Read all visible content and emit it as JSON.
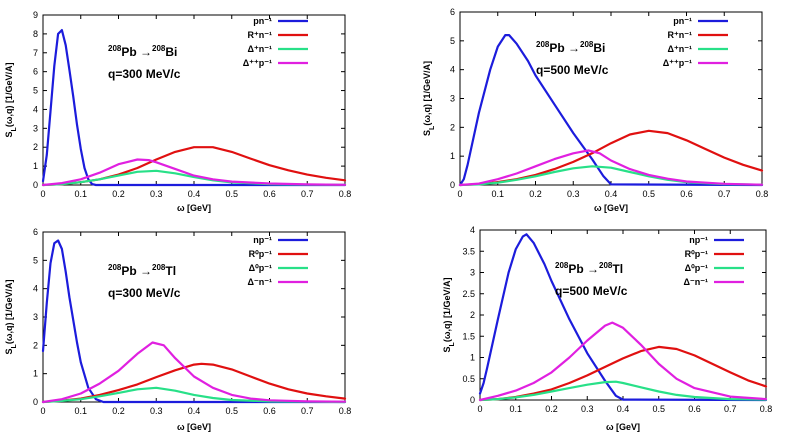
{
  "chart_data": [
    {
      "type": "line",
      "panel": "top-left",
      "reaction": {
        "target_mass": "208",
        "target": "Pb",
        "arrow": "→",
        "product_mass": "208",
        "product": "Bi"
      },
      "q_label": "q=300 MeV/c",
      "xlabel": "ω [GeV]",
      "ylabel": "S_L(ω,q) [1/GeV/A]",
      "xlim": [
        0,
        0.8
      ],
      "ylim": [
        0,
        9
      ],
      "xticks": [
        0,
        0.1,
        0.2,
        0.3,
        0.4,
        0.5,
        0.6,
        0.7,
        0.8
      ],
      "yticks": [
        0,
        1,
        2,
        3,
        4,
        5,
        6,
        7,
        8,
        9
      ],
      "legend_position": "top-right",
      "series": [
        {
          "name": "pn⁻¹",
          "color": "#1c1cdc",
          "x": [
            0,
            0.01,
            0.02,
            0.03,
            0.04,
            0.05,
            0.06,
            0.07,
            0.08,
            0.09,
            0.1,
            0.11,
            0.12,
            0.13,
            0.14,
            0.8
          ],
          "y": [
            0.2,
            1.6,
            3.9,
            6.3,
            8.0,
            8.2,
            7.4,
            6.1,
            4.7,
            3.2,
            1.9,
            0.9,
            0.3,
            0.05,
            0,
            0
          ]
        },
        {
          "name": "R⁺n⁻¹",
          "color": "#e01010",
          "x": [
            0,
            0.05,
            0.1,
            0.15,
            0.2,
            0.25,
            0.3,
            0.35,
            0.4,
            0.45,
            0.5,
            0.55,
            0.6,
            0.65,
            0.7,
            0.75,
            0.8
          ],
          "y": [
            0,
            0.05,
            0.15,
            0.3,
            0.55,
            0.9,
            1.35,
            1.75,
            2.0,
            2.0,
            1.75,
            1.4,
            1.05,
            0.78,
            0.55,
            0.38,
            0.25
          ]
        },
        {
          "name": "Δ⁺n⁻¹",
          "color": "#28e088",
          "x": [
            0,
            0.05,
            0.1,
            0.15,
            0.2,
            0.25,
            0.3,
            0.35,
            0.4,
            0.45,
            0.5,
            0.6,
            0.7,
            0.8
          ],
          "y": [
            0,
            0.05,
            0.15,
            0.3,
            0.5,
            0.7,
            0.75,
            0.62,
            0.42,
            0.25,
            0.14,
            0.05,
            0.02,
            0.01
          ]
        },
        {
          "name": "Δ⁺⁺p⁻¹",
          "color": "#e020e0",
          "x": [
            0,
            0.05,
            0.1,
            0.15,
            0.2,
            0.25,
            0.28,
            0.3,
            0.35,
            0.4,
            0.45,
            0.5,
            0.6,
            0.7,
            0.8
          ],
          "y": [
            0,
            0.1,
            0.3,
            0.65,
            1.1,
            1.35,
            1.32,
            1.2,
            0.85,
            0.5,
            0.3,
            0.18,
            0.08,
            0.03,
            0.01
          ]
        }
      ]
    },
    {
      "type": "line",
      "panel": "top-right",
      "reaction": {
        "target_mass": "208",
        "target": "Pb",
        "arrow": "→",
        "product_mass": "208",
        "product": "Bi"
      },
      "q_label": "q=500 MeV/c",
      "xlabel": "ω [GeV]",
      "ylabel": "S_L(ω,q) [1/GeV/A]",
      "xlim": [
        0,
        0.8
      ],
      "ylim": [
        0,
        6
      ],
      "xticks": [
        0,
        0.1,
        0.2,
        0.3,
        0.4,
        0.5,
        0.6,
        0.7,
        0.8
      ],
      "yticks": [
        0,
        1,
        2,
        3,
        4,
        5,
        6
      ],
      "legend_position": "top-right",
      "series": [
        {
          "name": "pn⁻¹",
          "color": "#1c1cdc",
          "x": [
            0,
            0.01,
            0.02,
            0.05,
            0.08,
            0.1,
            0.12,
            0.13,
            0.15,
            0.18,
            0.2,
            0.25,
            0.3,
            0.35,
            0.38,
            0.4,
            0.8
          ],
          "y": [
            0,
            0.2,
            0.7,
            2.5,
            4.0,
            4.8,
            5.2,
            5.2,
            4.9,
            4.3,
            3.8,
            2.8,
            1.8,
            0.9,
            0.3,
            0.02,
            0
          ]
        },
        {
          "name": "R⁺n⁻¹",
          "color": "#e01010",
          "x": [
            0,
            0.05,
            0.1,
            0.15,
            0.2,
            0.25,
            0.3,
            0.35,
            0.4,
            0.45,
            0.5,
            0.55,
            0.6,
            0.65,
            0.7,
            0.75,
            0.8
          ],
          "y": [
            0,
            0.03,
            0.1,
            0.2,
            0.35,
            0.55,
            0.8,
            1.1,
            1.45,
            1.75,
            1.88,
            1.8,
            1.55,
            1.25,
            0.95,
            0.7,
            0.5
          ]
        },
        {
          "name": "Δ⁺n⁻¹",
          "color": "#28e088",
          "x": [
            0,
            0.05,
            0.1,
            0.15,
            0.2,
            0.25,
            0.3,
            0.35,
            0.4,
            0.45,
            0.5,
            0.55,
            0.6,
            0.7,
            0.8
          ],
          "y": [
            0,
            0.02,
            0.08,
            0.18,
            0.3,
            0.45,
            0.58,
            0.65,
            0.6,
            0.45,
            0.3,
            0.18,
            0.1,
            0.03,
            0.01
          ]
        },
        {
          "name": "Δ⁺⁺p⁻¹",
          "color": "#e020e0",
          "x": [
            0,
            0.05,
            0.1,
            0.15,
            0.2,
            0.25,
            0.3,
            0.34,
            0.37,
            0.4,
            0.45,
            0.5,
            0.55,
            0.6,
            0.7,
            0.8
          ],
          "y": [
            0,
            0.05,
            0.2,
            0.4,
            0.65,
            0.9,
            1.1,
            1.2,
            1.1,
            0.85,
            0.55,
            0.35,
            0.22,
            0.12,
            0.04,
            0.01
          ]
        }
      ]
    },
    {
      "type": "line",
      "panel": "bottom-left",
      "reaction": {
        "target_mass": "208",
        "target": "Pb",
        "arrow": "→",
        "product_mass": "208",
        "product": "Tl"
      },
      "q_label": "q=300 MeV/c",
      "xlabel": "ω [GeV]",
      "ylabel": "S_L(ω,q) [1/GeV/A]",
      "xlim": [
        0,
        0.8
      ],
      "ylim": [
        0,
        6
      ],
      "xticks": [
        0,
        0.1,
        0.2,
        0.3,
        0.4,
        0.5,
        0.6,
        0.7,
        0.8
      ],
      "yticks": [
        0,
        1,
        2,
        3,
        4,
        5,
        6
      ],
      "legend_position": "top-right",
      "series": [
        {
          "name": "np⁻¹",
          "color": "#1c1cdc",
          "x": [
            0,
            0.01,
            0.02,
            0.03,
            0.04,
            0.05,
            0.06,
            0.07,
            0.08,
            0.09,
            0.1,
            0.12,
            0.14,
            0.16,
            0.8
          ],
          "y": [
            1.8,
            3.5,
            4.9,
            5.6,
            5.7,
            5.4,
            4.6,
            3.7,
            2.9,
            2.1,
            1.4,
            0.5,
            0.1,
            0,
            0
          ]
        },
        {
          "name": "R⁰p⁻¹",
          "color": "#e01010",
          "x": [
            0,
            0.05,
            0.1,
            0.15,
            0.2,
            0.25,
            0.3,
            0.35,
            0.4,
            0.42,
            0.45,
            0.5,
            0.55,
            0.6,
            0.65,
            0.7,
            0.75,
            0.8
          ],
          "y": [
            0,
            0.05,
            0.12,
            0.25,
            0.42,
            0.62,
            0.88,
            1.12,
            1.32,
            1.35,
            1.32,
            1.15,
            0.9,
            0.65,
            0.45,
            0.3,
            0.2,
            0.12
          ]
        },
        {
          "name": "Δ⁰p⁻¹",
          "color": "#28e088",
          "x": [
            0,
            0.05,
            0.1,
            0.15,
            0.2,
            0.25,
            0.3,
            0.35,
            0.4,
            0.45,
            0.5,
            0.6,
            0.7,
            0.8
          ],
          "y": [
            0,
            0.04,
            0.1,
            0.2,
            0.32,
            0.45,
            0.5,
            0.4,
            0.25,
            0.14,
            0.07,
            0.02,
            0.01,
            0
          ]
        },
        {
          "name": "Δ⁻n⁻¹",
          "color": "#e020e0",
          "x": [
            0,
            0.05,
            0.1,
            0.15,
            0.2,
            0.25,
            0.29,
            0.32,
            0.35,
            0.4,
            0.45,
            0.5,
            0.55,
            0.6,
            0.7,
            0.8
          ],
          "y": [
            0,
            0.1,
            0.3,
            0.65,
            1.1,
            1.7,
            2.1,
            2.0,
            1.55,
            0.9,
            0.5,
            0.25,
            0.12,
            0.06,
            0.02,
            0.01
          ]
        }
      ]
    },
    {
      "type": "line",
      "panel": "bottom-right",
      "reaction": {
        "target_mass": "208",
        "target": "Pb",
        "arrow": "→",
        "product_mass": "208",
        "product": "Tl"
      },
      "q_label": "q=500 MeV/c",
      "xlabel": "ω [GeV]",
      "ylabel": "S_L(ω,q) [1/GeV/A]",
      "xlim": [
        0,
        0.8
      ],
      "ylim": [
        0,
        4
      ],
      "xticks": [
        0,
        0.1,
        0.2,
        0.3,
        0.4,
        0.5,
        0.6,
        0.7,
        0.8
      ],
      "yticks": [
        0,
        0.5,
        1,
        1.5,
        2,
        2.5,
        3,
        3.5,
        4
      ],
      "legend_position": "top-right",
      "series": [
        {
          "name": "np⁻¹",
          "color": "#1c1cdc",
          "x": [
            0,
            0.01,
            0.02,
            0.05,
            0.08,
            0.1,
            0.12,
            0.13,
            0.15,
            0.18,
            0.2,
            0.25,
            0.3,
            0.35,
            0.38,
            0.4,
            0.8
          ],
          "y": [
            0.15,
            0.4,
            0.75,
            1.9,
            3.0,
            3.55,
            3.85,
            3.9,
            3.7,
            3.2,
            2.8,
            1.9,
            1.1,
            0.45,
            0.1,
            0.01,
            0
          ]
        },
        {
          "name": "R⁰p⁻¹",
          "color": "#e01010",
          "x": [
            0,
            0.05,
            0.1,
            0.15,
            0.2,
            0.25,
            0.3,
            0.35,
            0.4,
            0.45,
            0.5,
            0.55,
            0.6,
            0.65,
            0.7,
            0.75,
            0.8
          ],
          "y": [
            0,
            0.02,
            0.07,
            0.15,
            0.25,
            0.4,
            0.58,
            0.78,
            0.98,
            1.15,
            1.25,
            1.2,
            1.05,
            0.85,
            0.65,
            0.46,
            0.32
          ]
        },
        {
          "name": "Δ⁰p⁻¹",
          "color": "#28e088",
          "x": [
            0,
            0.05,
            0.1,
            0.15,
            0.2,
            0.25,
            0.3,
            0.35,
            0.38,
            0.4,
            0.45,
            0.5,
            0.55,
            0.6,
            0.7,
            0.8
          ],
          "y": [
            0,
            0.02,
            0.06,
            0.12,
            0.2,
            0.28,
            0.36,
            0.42,
            0.43,
            0.4,
            0.3,
            0.2,
            0.12,
            0.07,
            0.02,
            0.01
          ]
        },
        {
          "name": "Δ⁻n⁻¹",
          "color": "#e020e0",
          "x": [
            0,
            0.05,
            0.1,
            0.15,
            0.2,
            0.25,
            0.3,
            0.35,
            0.37,
            0.4,
            0.45,
            0.5,
            0.55,
            0.6,
            0.7,
            0.8
          ],
          "y": [
            0,
            0.1,
            0.22,
            0.4,
            0.65,
            1.0,
            1.4,
            1.75,
            1.82,
            1.7,
            1.3,
            0.85,
            0.5,
            0.28,
            0.08,
            0.02
          ]
        }
      ]
    }
  ]
}
